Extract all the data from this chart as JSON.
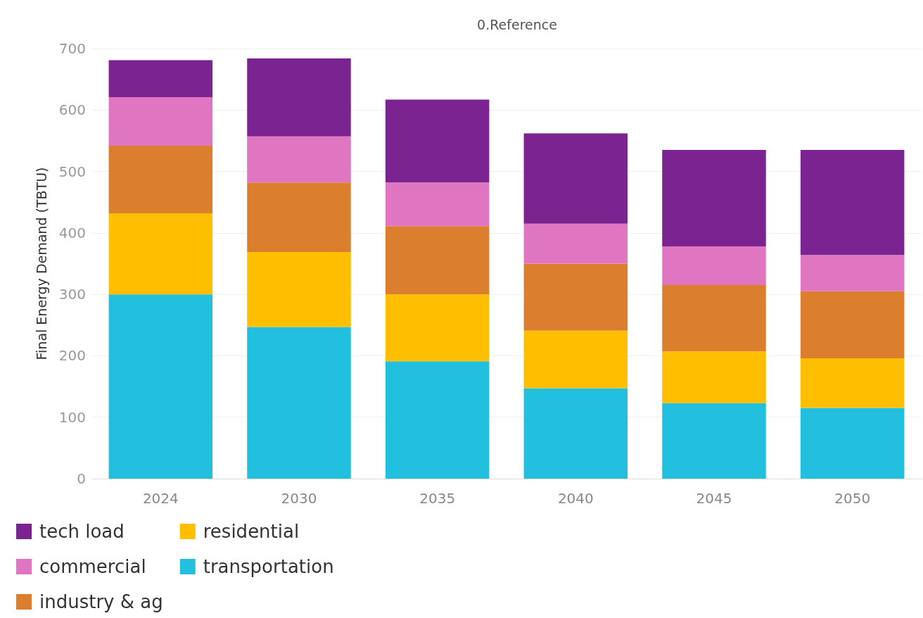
{
  "chart_data": {
    "type": "bar",
    "title": "0.Reference",
    "ylabel": "Final Energy Demand (TBTU)",
    "categories": [
      "2024",
      "2030",
      "2035",
      "2040",
      "2045",
      "2050"
    ],
    "stacked": true,
    "series": [
      {
        "name": "transportation",
        "color": "#22bfde",
        "values": [
          300,
          247,
          191,
          147,
          123,
          115
        ]
      },
      {
        "name": "residential",
        "color": "#ffbf00",
        "values": [
          132,
          122,
          109,
          94,
          84,
          81
        ]
      },
      {
        "name": "industry & ag",
        "color": "#db7f2e",
        "values": [
          110,
          113,
          111,
          109,
          108,
          109
        ]
      },
      {
        "name": "commercial",
        "color": "#e076c1",
        "values": [
          79,
          75,
          71,
          65,
          63,
          59
        ]
      },
      {
        "name": "tech load",
        "color": "#7b2390",
        "values": [
          60,
          127,
          135,
          147,
          157,
          171
        ]
      }
    ],
    "ylim": [
      0,
      700
    ],
    "yticks": [
      0,
      100,
      200,
      300,
      400,
      500,
      600,
      700
    ],
    "grid": "y",
    "legend": "bottom left"
  }
}
